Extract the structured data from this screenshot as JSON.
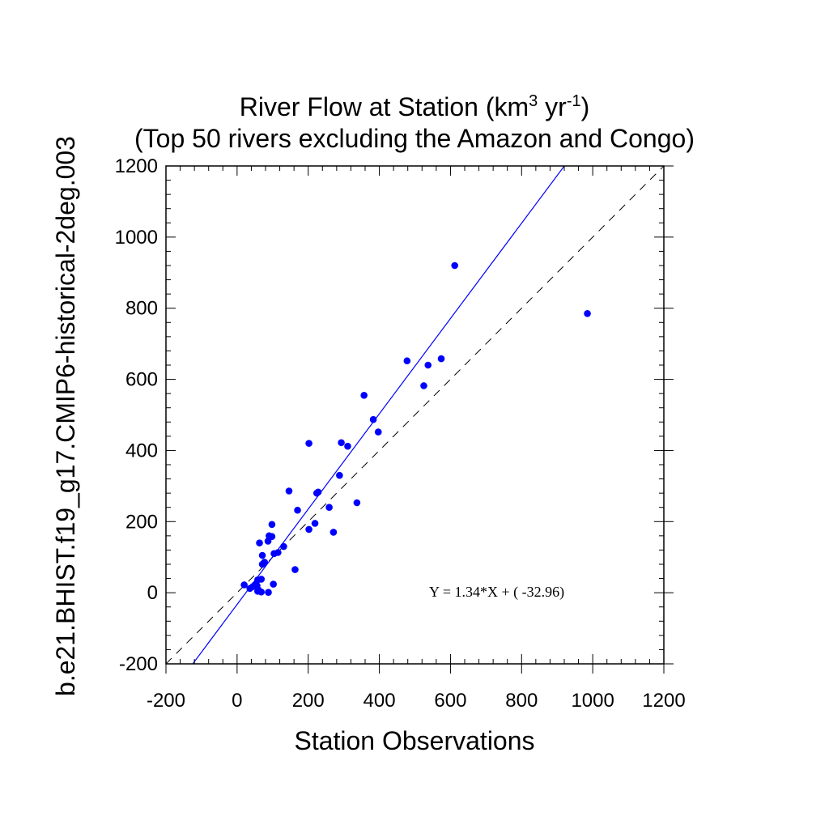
{
  "chart_data": {
    "type": "scatter",
    "title_line1": "River Flow at Station (km",
    "title_sup1": "3",
    "title_mid": " yr",
    "title_sup2": "-1",
    "title_end": ")",
    "title_line2": "(Top 50 rivers excluding the Amazon and Congo)",
    "xlabel": "Station Observations",
    "ylabel": "b.e21.BHIST.f19_g17.CMIP6-historical-2deg.003",
    "xlim": [
      -200,
      1200
    ],
    "ylim": [
      -200,
      1200
    ],
    "xticks": [
      -200,
      0,
      200,
      400,
      600,
      800,
      1000,
      1200
    ],
    "yticks": [
      -200,
      0,
      200,
      400,
      600,
      800,
      1000,
      1200
    ],
    "xtick_labels": [
      "-200",
      "0",
      "200",
      "400",
      "600",
      "800",
      "1000",
      "1200"
    ],
    "ytick_labels": [
      "-200",
      "0",
      "200",
      "400",
      "600",
      "800",
      "1000",
      "1200"
    ],
    "grid": false,
    "point_color": "#0000ff",
    "regression": {
      "slope": 1.34,
      "intercept": -32.96,
      "color": "#0000ff"
    },
    "one_to_one_line": {
      "style": "dashed",
      "color": "#000000"
    },
    "equation_label": "Y =  1.34*X + (  -32.96)",
    "points": [
      [
        612,
        920
      ],
      [
        985,
        785
      ],
      [
        478,
        652
      ],
      [
        574,
        658
      ],
      [
        537,
        640
      ],
      [
        525,
        582
      ],
      [
        357,
        555
      ],
      [
        383,
        487
      ],
      [
        397,
        452
      ],
      [
        202,
        420
      ],
      [
        293,
        422
      ],
      [
        311,
        412
      ],
      [
        288,
        330
      ],
      [
        146,
        286
      ],
      [
        228,
        283
      ],
      [
        224,
        280
      ],
      [
        259,
        240
      ],
      [
        170,
        232
      ],
      [
        337,
        253
      ],
      [
        219,
        195
      ],
      [
        98,
        192
      ],
      [
        202,
        178
      ],
      [
        271,
        170
      ],
      [
        90,
        160
      ],
      [
        98,
        158
      ],
      [
        87,
        145
      ],
      [
        63,
        140
      ],
      [
        131,
        130
      ],
      [
        115,
        113
      ],
      [
        104,
        110
      ],
      [
        71,
        105
      ],
      [
        77,
        86
      ],
      [
        71,
        80
      ],
      [
        163,
        65
      ],
      [
        68,
        38
      ],
      [
        58,
        36
      ],
      [
        102,
        24
      ],
      [
        20,
        22
      ],
      [
        50,
        22
      ],
      [
        56,
        20
      ],
      [
        44,
        17
      ],
      [
        36,
        12
      ],
      [
        60,
        8
      ],
      [
        58,
        4
      ],
      [
        68,
        2
      ],
      [
        88,
        1
      ]
    ]
  }
}
